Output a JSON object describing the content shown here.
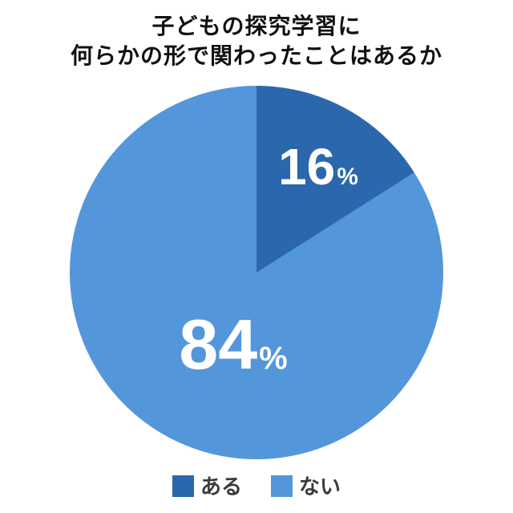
{
  "title": {
    "line1": "子どもの探究学習に",
    "line2": "何らかの形で関わったことはあるか"
  },
  "chart_data": {
    "type": "pie",
    "title": "子どもの探究学習に何らかの形で関わったことはあるか",
    "start_angle_deg": 0,
    "direction": "clockwise",
    "legend_position": "bottom",
    "data_label_color": "#ffffff",
    "background_color": "#ffffff",
    "slices": [
      {
        "label": "ある",
        "value": 16,
        "unit": "%",
        "color": "#2b67ac"
      },
      {
        "label": "ない",
        "value": 84,
        "unit": "%",
        "color": "#5496da"
      }
    ]
  }
}
